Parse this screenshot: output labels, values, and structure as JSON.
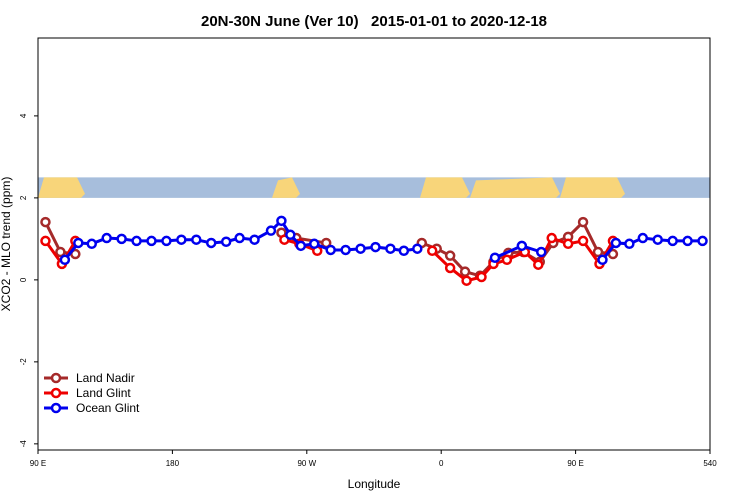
{
  "chart_data": {
    "type": "line",
    "title": "20N-30N June (Ver 10)   2015-01-01 to 2020-12-18",
    "xlabel": "Longitude",
    "ylabel": "XCO2 - MLO trend (ppm)",
    "xlim": [
      90,
      540
    ],
    "ylim": [
      -4.15,
      5.9
    ],
    "xticks": [
      {
        "value": 90,
        "label": "90 E"
      },
      180,
      {
        "value": 270,
        "label": "90 W"
      },
      {
        "value": 360,
        "label": "0"
      },
      {
        "value": 450,
        "label": "90 E"
      },
      540
    ],
    "yticks": [
      -4,
      -2,
      0,
      2,
      4
    ],
    "legend": "bottom-left",
    "series": [
      {
        "name": "Land Nadir",
        "color": "#a52a2a",
        "x": [
          95,
          105,
          115,
          185,
          253,
          263,
          283,
          320,
          347,
          357,
          366,
          376,
          386,
          395,
          405,
          415,
          426,
          435,
          445,
          455,
          465,
          475
        ],
        "values": [
          1.41,
          0.68,
          0.63,
          null,
          1.15,
          1.02,
          0.9,
          null,
          0.9,
          0.76,
          0.59,
          0.2,
          0.1,
          0.44,
          0.66,
          0.68,
          0.44,
          0.9,
          1.05,
          1.41,
          0.68,
          0.63
        ]
      },
      {
        "name": "Land Glint",
        "color": "#ee0000",
        "x": [
          95,
          106,
          115,
          185,
          255,
          265,
          277,
          320,
          354,
          366,
          377,
          387,
          395,
          404,
          416,
          425,
          434,
          445,
          455,
          466,
          475
        ],
        "values": [
          0.95,
          0.39,
          0.95,
          null,
          0.98,
          0.88,
          0.71,
          null,
          0.71,
          0.29,
          -0.02,
          0.07,
          0.39,
          0.49,
          0.68,
          0.37,
          1.02,
          0.88,
          0.95,
          0.39,
          0.95
        ]
      },
      {
        "name": "Ocean Glint",
        "color": "#0000ee",
        "x": [
          108,
          117,
          126,
          136,
          146,
          156,
          166,
          176,
          186,
          196,
          206,
          216,
          225,
          235,
          246,
          253,
          259,
          266,
          275,
          286,
          296,
          306,
          316,
          326,
          335,
          344,
          370,
          396,
          414,
          427,
          445,
          468,
          477,
          486,
          495,
          505,
          515,
          525,
          535
        ],
        "values": [
          0.49,
          0.9,
          0.88,
          1.02,
          1.0,
          0.95,
          0.95,
          0.95,
          0.98,
          0.98,
          0.9,
          0.93,
          1.02,
          0.98,
          1.2,
          1.44,
          1.1,
          0.83,
          0.88,
          0.73,
          0.73,
          0.76,
          0.8,
          0.76,
          0.71,
          0.76,
          null,
          0.54,
          0.83,
          0.68,
          null,
          0.49,
          0.9,
          0.88,
          1.02,
          0.98,
          0.95,
          0.95,
          0.95
        ]
      }
    ]
  }
}
